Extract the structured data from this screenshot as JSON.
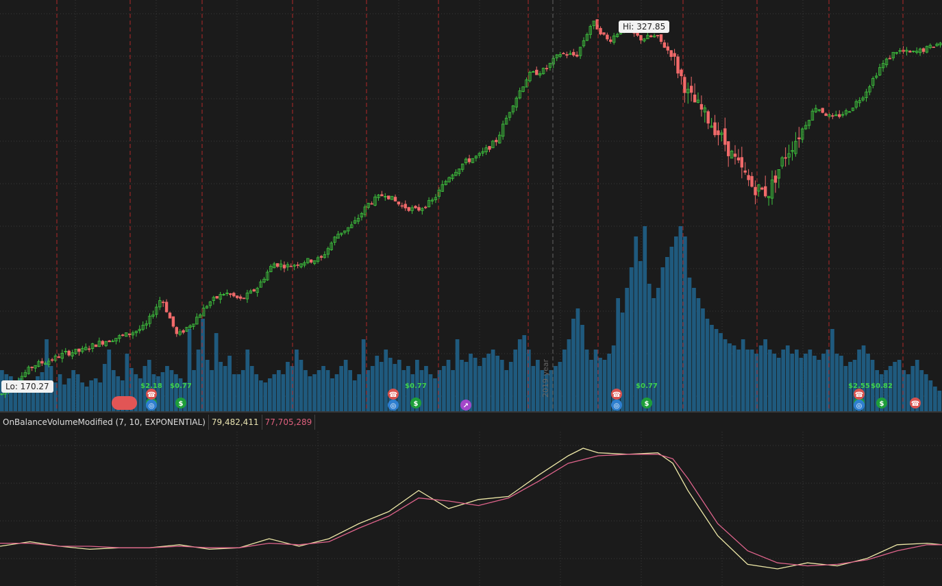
{
  "study": {
    "name": "OnBalanceVolumeModified (7, 10, EXPONENTIAL)",
    "value1": "79,482,411",
    "value2": "77,705,289",
    "value1_color": "#e8e2b0",
    "value2_color": "#e0607e"
  },
  "callouts": {
    "high": "Hi: 327.85",
    "low": "Lo: 170.27"
  },
  "year_marker": "2019 year",
  "events": [
    {
      "type": "dividend",
      "label": "$2.18"
    },
    {
      "type": "dividend",
      "label": "$0.77"
    },
    {
      "type": "dividend",
      "label": "$0.77"
    },
    {
      "type": "dividend",
      "label": "$0.77"
    },
    {
      "type": "dividend",
      "label": "$2.55"
    },
    {
      "type": "dividend",
      "label": "$0.82"
    }
  ],
  "colors": {
    "background": "#1b1b1b",
    "up": "#3fc83f",
    "down": "#f06a6a",
    "volume": "#1f5a7e",
    "grid": "#3a3a3a",
    "separator": "#b02a2a",
    "ema_fast": "#efe9a8",
    "ema_slow": "#e0648c"
  },
  "chart_data": [
    {
      "type": "candlestick",
      "y_range": [
        165,
        335
      ],
      "high": 327.85,
      "low": 170.27,
      "close_points": [
        [
          0,
          172
        ],
        [
          5,
          178
        ],
        [
          10,
          184
        ],
        [
          15,
          186
        ],
        [
          20,
          189
        ],
        [
          25,
          190
        ],
        [
          30,
          193
        ],
        [
          35,
          195
        ],
        [
          40,
          197
        ],
        [
          45,
          200
        ],
        [
          50,
          212
        ],
        [
          55,
          196
        ],
        [
          60,
          202
        ],
        [
          65,
          210
        ],
        [
          70,
          214
        ],
        [
          75,
          211
        ],
        [
          80,
          216
        ],
        [
          85,
          226
        ],
        [
          90,
          225
        ],
        [
          95,
          227
        ],
        [
          100,
          228
        ],
        [
          105,
          238
        ],
        [
          110,
          242
        ],
        [
          115,
          251
        ],
        [
          120,
          255
        ],
        [
          125,
          250
        ],
        [
          130,
          248
        ],
        [
          135,
          252
        ],
        [
          140,
          262
        ],
        [
          145,
          268
        ],
        [
          150,
          271
        ],
        [
          155,
          277
        ],
        [
          160,
          292
        ],
        [
          165,
          304
        ],
        [
          170,
          306
        ],
        [
          175,
          313
        ],
        [
          180,
          312
        ],
        [
          185,
          326
        ],
        [
          190,
          318
        ],
        [
          195,
          324
        ],
        [
          200,
          319
        ],
        [
          205,
          320
        ],
        [
          210,
          312
        ],
        [
          215,
          296
        ],
        [
          220,
          288
        ],
        [
          225,
          279
        ],
        [
          230,
          268
        ],
        [
          235,
          258
        ],
        [
          240,
          255
        ],
        [
          245,
          270
        ],
        [
          250,
          280
        ],
        [
          255,
          291
        ],
        [
          260,
          286
        ],
        [
          265,
          289
        ],
        [
          270,
          296
        ],
        [
          275,
          307
        ],
        [
          280,
          314
        ],
        [
          285,
          313
        ],
        [
          290,
          315
        ],
        [
          295,
          318
        ]
      ]
    },
    {
      "type": "bar",
      "name": "volume",
      "values_rel": [
        0.2,
        0.18,
        0.17,
        0.15,
        0.16,
        0.13,
        0.15,
        0.14,
        0.17,
        0.19,
        0.35,
        0.22,
        0.14,
        0.18,
        0.13,
        0.16,
        0.2,
        0.18,
        0.14,
        0.12,
        0.15,
        0.16,
        0.14,
        0.23,
        0.3,
        0.2,
        0.17,
        0.15,
        0.28,
        0.21,
        0.18,
        0.16,
        0.22,
        0.25,
        0.18,
        0.17,
        0.19,
        0.22,
        0.2,
        0.18,
        0.16,
        0.14,
        0.4,
        0.2,
        0.3,
        0.45,
        0.25,
        0.2,
        0.38,
        0.24,
        0.22,
        0.27,
        0.18,
        0.18,
        0.2,
        0.3,
        0.22,
        0.18,
        0.15,
        0.14,
        0.16,
        0.18,
        0.2,
        0.18,
        0.24,
        0.22,
        0.3,
        0.25,
        0.2,
        0.17,
        0.18,
        0.2,
        0.22,
        0.2,
        0.16,
        0.18,
        0.22,
        0.25,
        0.2,
        0.15,
        0.18,
        0.35,
        0.2,
        0.22,
        0.27,
        0.24,
        0.3,
        0.26,
        0.23,
        0.25,
        0.2,
        0.22,
        0.18,
        0.25,
        0.2,
        0.22,
        0.18,
        0.16,
        0.2,
        0.22,
        0.25,
        0.2,
        0.35,
        0.25,
        0.24,
        0.28,
        0.26,
        0.22,
        0.26,
        0.28,
        0.3,
        0.27,
        0.25,
        0.2,
        0.24,
        0.3,
        0.35,
        0.37,
        0.3,
        0.22,
        0.25,
        0.2,
        0.18,
        0.2,
        0.22,
        0.24,
        0.3,
        0.35,
        0.45,
        0.5,
        0.42,
        0.3,
        0.25,
        0.3,
        0.26,
        0.25,
        0.28,
        0.32,
        0.55,
        0.48,
        0.6,
        0.7,
        0.85,
        0.73,
        0.9,
        0.62,
        0.55,
        0.6,
        0.7,
        0.75,
        0.8,
        0.85,
        0.9,
        0.85,
        0.65,
        0.6,
        0.55,
        0.5,
        0.45,
        0.42,
        0.4,
        0.38,
        0.35,
        0.33,
        0.32,
        0.3,
        0.35,
        0.3,
        0.3,
        0.28,
        0.32,
        0.35,
        0.3,
        0.28,
        0.26,
        0.3,
        0.32,
        0.28,
        0.3,
        0.26,
        0.28,
        0.3,
        0.27,
        0.25,
        0.28,
        0.3,
        0.4,
        0.28,
        0.27,
        0.22,
        0.24,
        0.25,
        0.3,
        0.32,
        0.28,
        0.25,
        0.2,
        0.18,
        0.2,
        0.22,
        0.24,
        0.25,
        0.2,
        0.18,
        0.22,
        0.25,
        0.2,
        0.18,
        0.15,
        0.12,
        0.1
      ]
    },
    {
      "type": "line",
      "series": [
        {
          "name": "",
          "color": "#efe9a8",
          "points": [
            [
              0,
              0.25
            ],
            [
              20,
              0.28
            ],
            [
              40,
              0.25
            ],
            [
              60,
              0.23
            ],
            [
              80,
              0.24
            ],
            [
              100,
              0.24
            ],
            [
              120,
              0.26
            ],
            [
              140,
              0.23
            ],
            [
              160,
              0.24
            ],
            [
              180,
              0.3
            ],
            [
              200,
              0.25
            ],
            [
              220,
              0.3
            ],
            [
              240,
              0.4
            ],
            [
              260,
              0.48
            ],
            [
              280,
              0.62
            ],
            [
              300,
              0.5
            ],
            [
              320,
              0.56
            ],
            [
              340,
              0.58
            ],
            [
              360,
              0.72
            ],
            [
              380,
              0.85
            ],
            [
              390,
              0.9
            ],
            [
              400,
              0.87
            ],
            [
              420,
              0.86
            ],
            [
              440,
              0.87
            ],
            [
              450,
              0.8
            ],
            [
              460,
              0.62
            ],
            [
              480,
              0.32
            ],
            [
              500,
              0.13
            ],
            [
              520,
              0.1
            ],
            [
              540,
              0.14
            ],
            [
              560,
              0.12
            ],
            [
              580,
              0.17
            ],
            [
              600,
              0.26
            ],
            [
              620,
              0.27
            ],
            [
              630,
              0.26
            ]
          ]
        },
        {
          "name": "",
          "color": "#e0648c",
          "points": [
            [
              0,
              0.27
            ],
            [
              20,
              0.27
            ],
            [
              40,
              0.25
            ],
            [
              60,
              0.25
            ],
            [
              80,
              0.24
            ],
            [
              100,
              0.24
            ],
            [
              120,
              0.25
            ],
            [
              140,
              0.24
            ],
            [
              160,
              0.24
            ],
            [
              180,
              0.27
            ],
            [
              200,
              0.26
            ],
            [
              220,
              0.28
            ],
            [
              240,
              0.37
            ],
            [
              260,
              0.45
            ],
            [
              280,
              0.57
            ],
            [
              300,
              0.55
            ],
            [
              320,
              0.52
            ],
            [
              340,
              0.57
            ],
            [
              360,
              0.68
            ],
            [
              380,
              0.8
            ],
            [
              400,
              0.85
            ],
            [
              420,
              0.86
            ],
            [
              440,
              0.86
            ],
            [
              450,
              0.83
            ],
            [
              460,
              0.7
            ],
            [
              480,
              0.4
            ],
            [
              500,
              0.22
            ],
            [
              520,
              0.14
            ],
            [
              540,
              0.12
            ],
            [
              560,
              0.13
            ],
            [
              580,
              0.16
            ],
            [
              600,
              0.22
            ],
            [
              620,
              0.26
            ],
            [
              630,
              0.26
            ]
          ]
        }
      ]
    }
  ]
}
